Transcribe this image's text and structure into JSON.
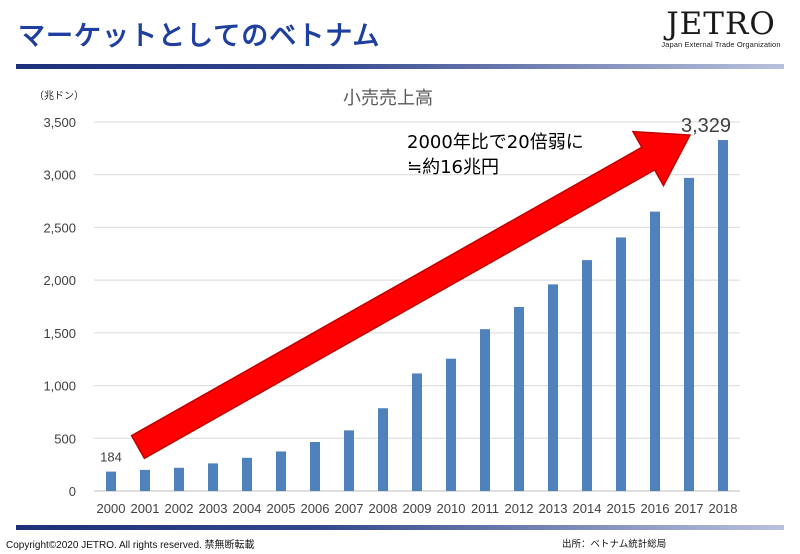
{
  "slide": {
    "title": "マーケットとしてのベトナム",
    "logo_text": "JETRO",
    "logo_subtitle": "Japan External Trade Organization",
    "footer_left": "Copyright©2020 JETRO.  All rights reserved. 禁無断転載",
    "footer_right": "出所：ベトナム統計総局"
  },
  "colors": {
    "title": "#1f3fa0",
    "bar": "#4f81bd",
    "arrow_fill": "#ff0000",
    "arrow_stroke": "#c00000",
    "rule": "#1c2f7a"
  },
  "chart_data": {
    "type": "bar",
    "title": "小売売上高",
    "unit_label": "（兆ドン）",
    "categories": [
      "2000",
      "2001",
      "2002",
      "2003",
      "2004",
      "2005",
      "2006",
      "2007",
      "2008",
      "2009",
      "2010",
      "2011",
      "2012",
      "2013",
      "2014",
      "2015",
      "2016",
      "2017",
      "2018"
    ],
    "values": [
      184,
      200,
      220,
      262,
      315,
      375,
      465,
      575,
      785,
      1115,
      1255,
      1535,
      1745,
      1960,
      2190,
      2405,
      2650,
      2970,
      3329
    ],
    "ylim": [
      0,
      3500
    ],
    "yticks": [
      0,
      500,
      1000,
      1500,
      2000,
      2500,
      3000,
      3500
    ],
    "ytick_labels": [
      "0",
      "500",
      "1,000",
      "1,500",
      "2,000",
      "2,500",
      "3,000",
      "3,500"
    ],
    "grid": true,
    "data_labels": [
      {
        "category": "2000",
        "text": "184"
      },
      {
        "category": "2018",
        "text": "3,329"
      }
    ],
    "annotation": {
      "line1": "2000年比で20倍弱に",
      "line2": "≒約16兆円"
    }
  }
}
